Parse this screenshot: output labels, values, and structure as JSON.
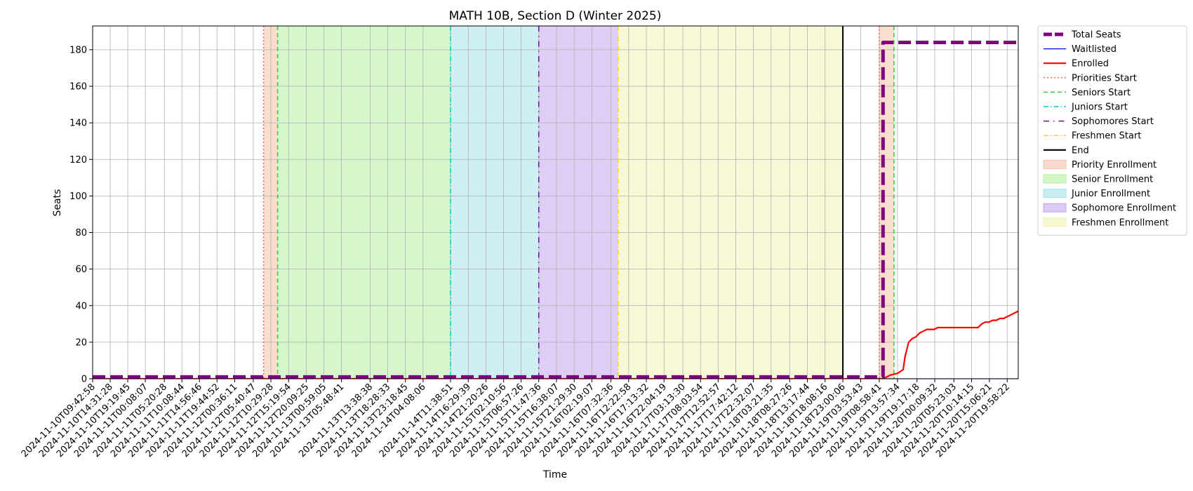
{
  "chart_data": {
    "type": "line",
    "title": "MATH 10B, Section D (Winter 2025)",
    "xlabel": "Time",
    "ylabel": "Seats",
    "ylim": [
      0,
      193
    ],
    "y_ticks": [
      0,
      20,
      40,
      60,
      80,
      100,
      120,
      140,
      160,
      180
    ],
    "x_range": [
      "2024-11-10T09:42:58",
      "2024-11-20T23:00:00"
    ],
    "x_tick_labels": [
      "2024-11-10T09:42:58",
      "2024-11-10T14:31:28",
      "2024-11-10T19:19:45",
      "2024-11-11T00:08:07",
      "2024-11-11T05:20:28",
      "2024-11-11T10:08:44",
      "2024-11-11T14:56:46",
      "2024-11-11T19:44:52",
      "2024-11-12T00:36:11",
      "2024-11-12T05:40:47",
      "2024-11-12T10:29:28",
      "2024-11-12T15:19:54",
      "2024-11-12T20:09:25",
      "2024-11-13T00:59:05",
      "2024-11-13T05:48:41",
      "2024-11-13T13:38:38",
      "2024-11-13T18:28:33",
      "2024-11-13T23:18:45",
      "2024-11-14T04:08:06",
      "2024-11-14T11:38:51",
      "2024-11-14T16:29:39",
      "2024-11-14T21:20:26",
      "2024-11-15T02:10:56",
      "2024-11-15T06:57:26",
      "2024-11-15T11:47:36",
      "2024-11-15T16:38:07",
      "2024-11-15T21:29:30",
      "2024-11-16T02:19:07",
      "2024-11-16T07:32:36",
      "2024-11-16T12:22:58",
      "2024-11-16T17:13:32",
      "2024-11-16T22:04:19",
      "2024-11-17T03:13:30",
      "2024-11-17T08:03:54",
      "2024-11-17T12:52:57",
      "2024-11-17T17:42:12",
      "2024-11-17T22:32:07",
      "2024-11-18T03:21:35",
      "2024-11-18T08:27:26",
      "2024-11-18T13:17:44",
      "2024-11-18T18:08:16",
      "2024-11-18T23:00:06",
      "2024-11-19T03:53:43",
      "2024-11-19T08:58:41",
      "2024-11-19T13:57:34",
      "2024-11-19T19:17:18",
      "2024-11-20T00:09:32",
      "2024-11-20T05:23:03",
      "2024-11-20T10:14:15",
      "2024-11-20T15:06:21",
      "2024-11-20T19:58:22"
    ],
    "series": [
      {
        "name": "Total Seats",
        "color": "#800080",
        "style": "dashed-thick",
        "x": [
          "2024-11-10T09:42:58",
          "2024-11-19T10:00:00",
          "2024-11-19T10:00:00",
          "2024-11-20T23:00:00"
        ],
        "y": [
          1,
          1,
          184,
          184
        ]
      },
      {
        "name": "Waitlisted",
        "color": "#0000ff",
        "style": "solid-thin",
        "x": [
          "2024-11-10T09:42:58",
          "2024-11-20T23:00:00"
        ],
        "y": [
          0,
          0
        ]
      },
      {
        "name": "Enrolled",
        "color": "#ff0000",
        "style": "solid",
        "x": [
          "2024-11-10T09:42:58",
          "2024-11-19T10:00:00",
          "2024-11-19T12:00:00",
          "2024-11-19T14:00:00",
          "2024-11-19T15:30:00",
          "2024-11-19T16:00:00",
          "2024-11-19T17:00:00",
          "2024-11-19T18:00:00",
          "2024-11-19T19:00:00",
          "2024-11-19T20:00:00",
          "2024-11-19T21:00:00",
          "2024-11-19T22:00:00",
          "2024-11-19T23:00:00",
          "2024-11-20T00:00:00",
          "2024-11-20T01:00:00",
          "2024-11-20T02:00:00",
          "2024-11-20T12:00:00",
          "2024-11-20T13:00:00",
          "2024-11-20T14:00:00",
          "2024-11-20T15:00:00",
          "2024-11-20T16:00:00",
          "2024-11-20T17:00:00",
          "2024-11-20T18:00:00",
          "2024-11-20T19:00:00",
          "2024-11-20T20:00:00",
          "2024-11-20T21:00:00",
          "2024-11-20T22:00:00",
          "2024-11-20T23:00:00"
        ],
        "y": [
          0,
          0,
          2,
          3,
          5,
          12,
          20,
          22,
          23,
          25,
          26,
          27,
          27,
          27,
          28,
          28,
          28,
          30,
          31,
          31,
          32,
          32,
          33,
          33,
          34,
          35,
          36,
          37
        ]
      }
    ],
    "vlines": [
      {
        "name": "Priorities Start",
        "x": "2024-11-12T08:30:00",
        "color": "#ff6347",
        "style": "dotted"
      },
      {
        "name": "Seniors Start",
        "x": "2024-11-12T12:20:00",
        "color": "#32cd32",
        "style": "dashed"
      },
      {
        "name": "Juniors Start",
        "x": "2024-11-14T11:38:51",
        "color": "#00ced1",
        "style": "dashdot"
      },
      {
        "name": "Sophomores Start",
        "x": "2024-11-15T11:47:36",
        "color": "#6a0dad",
        "style": "dashdotted-sparse"
      },
      {
        "name": "Freshmen Start",
        "x": "2024-11-16T09:30:00",
        "color": "#ffd700",
        "style": "dashdot"
      },
      {
        "name": "End",
        "x": "2024-11-18T23:00:06",
        "color": "#000000",
        "style": "solid"
      },
      {
        "name": "Priorities Start",
        "x": "2024-11-19T08:58:41",
        "color": "#ff6347",
        "style": "dotted"
      },
      {
        "name": "Seniors Start",
        "x": "2024-11-19T13:00:00",
        "color": "#32cd32",
        "style": "dashed"
      }
    ],
    "spans": [
      {
        "name": "Priority Enrollment",
        "x0": "2024-11-12T08:30:00",
        "x1": "2024-11-12T12:20:00",
        "color": "#f4c2a8"
      },
      {
        "name": "Senior Enrollment",
        "x0": "2024-11-12T12:20:00",
        "x1": "2024-11-14T11:38:51",
        "color": "#b5eea0"
      },
      {
        "name": "Junior Enrollment",
        "x0": "2024-11-14T11:38:51",
        "x1": "2024-11-15T11:47:36",
        "color": "#a5e3ea"
      },
      {
        "name": "Sophomore Enrollment",
        "x0": "2024-11-15T11:47:36",
        "x1": "2024-11-16T09:30:00",
        "color": "#c3a6ed"
      },
      {
        "name": "Freshmen Enrollment",
        "x0": "2024-11-16T09:30:00",
        "x1": "2024-11-18T23:00:06",
        "color": "#f1f2b3"
      },
      {
        "name": "Priority Enrollment",
        "x0": "2024-11-19T08:58:41",
        "x1": "2024-11-19T13:00:00",
        "color": "#f4c2a8"
      }
    ],
    "legend": {
      "placement": "outside-right-top",
      "entries": [
        {
          "label": "Total Seats",
          "kind": "line",
          "color": "#800080",
          "style": "dashed-thick"
        },
        {
          "label": "Waitlisted",
          "kind": "line",
          "color": "#0000ff",
          "style": "solid-thin"
        },
        {
          "label": "Enrolled",
          "kind": "line",
          "color": "#ff0000",
          "style": "solid"
        },
        {
          "label": "Priorities Start",
          "kind": "line",
          "color": "#ff6347",
          "style": "dotted"
        },
        {
          "label": "Seniors Start",
          "kind": "line",
          "color": "#32cd32",
          "style": "dashed"
        },
        {
          "label": "Juniors Start",
          "kind": "line",
          "color": "#00ced1",
          "style": "dashdot"
        },
        {
          "label": "Sophomores Start",
          "kind": "line",
          "color": "#6a0dad",
          "style": "dashdotted-sparse"
        },
        {
          "label": "Freshmen Start",
          "kind": "line",
          "color": "#ffd700",
          "style": "dashdot"
        },
        {
          "label": "End",
          "kind": "line",
          "color": "#000000",
          "style": "solid"
        },
        {
          "label": "Priority Enrollment",
          "kind": "patch",
          "color": "#f4c2a8"
        },
        {
          "label": "Senior Enrollment",
          "kind": "patch",
          "color": "#b5eea0"
        },
        {
          "label": "Junior Enrollment",
          "kind": "patch",
          "color": "#a5e3ea"
        },
        {
          "label": "Sophomore Enrollment",
          "kind": "patch",
          "color": "#c3a6ed"
        },
        {
          "label": "Freshmen Enrollment",
          "kind": "patch",
          "color": "#f1f2b3"
        }
      ]
    },
    "grid": true
  }
}
